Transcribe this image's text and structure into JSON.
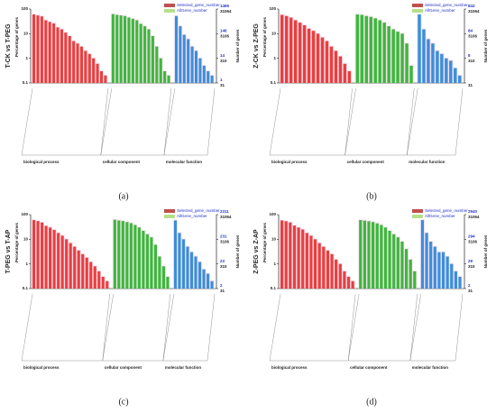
{
  "chart_data": [
    {
      "type": "bar",
      "title": "(a)",
      "ylabel": "T-CK vs T-PEG",
      "y_axis_label": "Percentage of genes",
      "y2_axis_label": "Number of genes",
      "log_scale": true,
      "ylim": [
        0.1,
        100
      ],
      "yticks": [
        100,
        10,
        1,
        0.1
      ],
      "y2_selected": [
        1465,
        146,
        14,
        1
      ],
      "y2_all": [
        31064,
        3106,
        310,
        31
      ],
      "legend": [
        {
          "name": "Selected_gene_number",
          "color": "#c0504d"
        },
        {
          "name": "AllGene_number",
          "color": "#b5e08a"
        }
      ],
      "series": [
        {
          "name": "biological process",
          "color": "#e8403e",
          "values": [
            60,
            55,
            50,
            35,
            30,
            26,
            18,
            15,
            11,
            8,
            5,
            4,
            3,
            2,
            1.5,
            1,
            0.6,
            0.3,
            0.2
          ]
        },
        {
          "name": "cellular component",
          "color": "#3cb83c",
          "values": [
            62,
            58,
            55,
            52,
            45,
            40,
            35,
            25,
            20,
            15,
            8,
            3,
            1,
            0.3,
            0.2
          ]
        },
        {
          "name": "molecular function",
          "color": "#3c8fd8",
          "values": [
            52,
            20,
            9,
            6,
            3,
            2,
            1,
            0.5,
            0.3,
            0.2
          ]
        }
      ]
    },
    {
      "type": "bar",
      "title": "(b)",
      "ylabel": "Z-CK vs Z-PEG",
      "y_axis_label": "Percentage of genes",
      "y2_axis_label": "Number of genes",
      "log_scale": true,
      "ylim": [
        0.1,
        100
      ],
      "yticks": [
        100,
        10,
        1,
        0.1
      ],
      "y2_selected": [
        843,
        84,
        8,
        null
      ],
      "y2_all": [
        31064,
        3106,
        310,
        31
      ],
      "legend": [
        {
          "name": "Selected_gene_number",
          "color": "#c0504d"
        },
        {
          "name": "AllGene_number",
          "color": "#b5e08a"
        }
      ],
      "series": [
        {
          "name": "biological process",
          "color": "#e8403e",
          "values": [
            58,
            52,
            45,
            35,
            28,
            22,
            16,
            13,
            10,
            7,
            5,
            3,
            2,
            1.2,
            0.6,
            0.3
          ]
        },
        {
          "name": "cellular component",
          "color": "#3cb83c",
          "values": [
            60,
            58,
            52,
            48,
            42,
            35,
            28,
            20,
            15,
            12,
            10,
            4,
            0.5
          ]
        },
        {
          "name": "molecular function",
          "color": "#3c8fd8",
          "values": [
            60,
            15,
            6,
            4,
            2,
            1.5,
            1,
            0.8,
            0.4,
            0.2
          ]
        }
      ]
    },
    {
      "type": "bar",
      "title": "(c)",
      "ylabel": "T-PEG vs T-AP",
      "y_axis_label": "Percentage of genes",
      "y2_axis_label": "Number of genes",
      "log_scale": true,
      "ylim": [
        0.1,
        100
      ],
      "yticks": [
        100,
        10,
        1,
        0.1
      ],
      "y2_selected": [
        2311,
        231,
        23,
        2
      ],
      "y2_all": [
        31064,
        3106,
        310,
        31
      ],
      "legend": [
        {
          "name": "Selected_gene_number",
          "color": "#c0504d"
        },
        {
          "name": "AllGene_number",
          "color": "#b5e08a"
        }
      ],
      "series": [
        {
          "name": "biological process",
          "color": "#e8403e",
          "values": [
            60,
            55,
            48,
            35,
            30,
            24,
            18,
            14,
            10,
            7,
            5,
            3.5,
            2.5,
            1.8,
            1.2,
            0.8,
            0.5,
            0.3,
            0.2
          ]
        },
        {
          "name": "cellular component",
          "color": "#3cb83c",
          "values": [
            62,
            58,
            55,
            50,
            45,
            38,
            30,
            22,
            16,
            12,
            6,
            2,
            0.8,
            0.3
          ]
        },
        {
          "name": "molecular function",
          "color": "#3c8fd8",
          "values": [
            58,
            18,
            10,
            5,
            3,
            2,
            1.2,
            0.6,
            0.4,
            0.2
          ]
        }
      ]
    },
    {
      "type": "bar",
      "title": "(d)",
      "ylabel": "Z-PEG vs Z-AP",
      "y_axis_label": "Percentage of genes",
      "y2_axis_label": "Number of genes",
      "log_scale": true,
      "ylim": [
        0.1,
        100
      ],
      "yticks": [
        100,
        10,
        1,
        0.1
      ],
      "y2_selected": [
        2940,
        294,
        29,
        2
      ],
      "y2_all": [
        31064,
        3106,
        310,
        31
      ],
      "legend": [
        {
          "name": "Selected_gene_number",
          "color": "#c0504d"
        },
        {
          "name": "AllGene_number",
          "color": "#b5e08a"
        }
      ],
      "series": [
        {
          "name": "biological process",
          "color": "#e8403e",
          "values": [
            58,
            54,
            48,
            36,
            30,
            25,
            18,
            14,
            10,
            7,
            5,
            3.5,
            2.5,
            1.5,
            1,
            0.5,
            0.3,
            0.2
          ]
        },
        {
          "name": "cellular component",
          "color": "#3cb83c",
          "values": [
            60,
            57,
            54,
            50,
            44,
            38,
            30,
            22,
            16,
            12,
            8,
            4,
            1.5,
            0.5
          ]
        },
        {
          "name": "molecular function",
          "color": "#3c8fd8",
          "values": [
            60,
            18,
            8,
            5,
            3,
            3,
            2,
            1,
            0.5,
            0.3
          ]
        }
      ]
    }
  ]
}
